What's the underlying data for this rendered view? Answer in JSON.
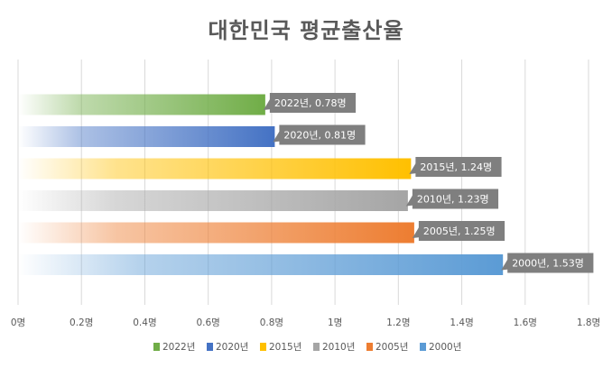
{
  "chart_data": {
    "type": "bar",
    "orientation": "horizontal",
    "title": "대한민국 평균출산율",
    "xlabel": "",
    "ylabel": "",
    "xlim": [
      0,
      1.8
    ],
    "tick_step": 0.2,
    "tick_labels": [
      "0명",
      "0.2명",
      "0.4명",
      "0.6명",
      "0.8명",
      "1명",
      "1.2명",
      "1.4명",
      "1.6명",
      "1.8명"
    ],
    "grid": true,
    "legend_position": "bottom",
    "series": [
      {
        "name": "2022년",
        "value": 0.78,
        "label": "2022년, 0.78명",
        "color": "#70AD47"
      },
      {
        "name": "2020년",
        "value": 0.81,
        "label": "2020년, 0.81명",
        "color": "#4472C4"
      },
      {
        "name": "2015년",
        "value": 1.24,
        "label": "2015년, 1.24명",
        "color": "#FFC000"
      },
      {
        "name": "2010년",
        "value": 1.23,
        "label": "2010년, 1.23명",
        "color": "#A5A5A5"
      },
      {
        "name": "2005년",
        "value": 1.25,
        "label": "2005년, 1.25명",
        "color": "#ED7D31"
      },
      {
        "name": "2000년",
        "value": 1.53,
        "label": "2000년, 1.53명",
        "color": "#5B9BD5"
      }
    ]
  }
}
